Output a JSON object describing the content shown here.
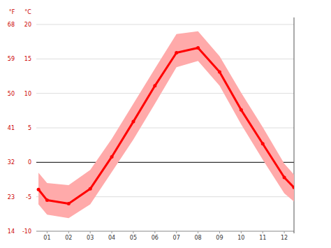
{
  "chart_data": {
    "type": "line",
    "y_label": "°C",
    "y2_label": "°F",
    "x": [
      0.6,
      1,
      2,
      3,
      4,
      5,
      6,
      7,
      8,
      9,
      10,
      11,
      12,
      12.45
    ],
    "xlim": [
      0.5,
      12.45
    ],
    "xticks": [
      {
        "value": 1,
        "label": "01"
      },
      {
        "value": 2,
        "label": "02"
      },
      {
        "value": 3,
        "label": "03"
      },
      {
        "value": 4,
        "label": "04"
      },
      {
        "value": 5,
        "label": "05"
      },
      {
        "value": 6,
        "label": "06"
      },
      {
        "value": 7,
        "label": "07"
      },
      {
        "value": 8,
        "label": "08"
      },
      {
        "value": 9,
        "label": "09"
      },
      {
        "value": 10,
        "label": "10"
      },
      {
        "value": 11,
        "label": "11"
      },
      {
        "value": 12,
        "label": "12"
      }
    ],
    "ylim": [
      -10,
      20
    ],
    "yticks": [
      -10,
      -5,
      0,
      5,
      10,
      15,
      20
    ],
    "y2lim": [
      14,
      68
    ],
    "y2ticks": [
      14,
      23,
      32,
      41,
      50,
      59,
      68
    ],
    "grid": true,
    "series": [
      {
        "type": "band",
        "color": "#ffaaaa",
        "upper": [
          -1.5,
          -3.0,
          -3.3,
          -1.1,
          3.4,
          8.5,
          13.6,
          18.6,
          19.0,
          15.4,
          10.1,
          5.1,
          -0.2,
          -1.8
        ],
        "lower": [
          -6.1,
          -7.6,
          -8.1,
          -6.1,
          -1.4,
          3.3,
          8.5,
          13.8,
          14.7,
          11.1,
          5.5,
          0.4,
          -4.5,
          -5.7
        ]
      },
      {
        "type": "line",
        "color": "#ff0000",
        "marker": "circle",
        "values": [
          -3.95,
          -5.5,
          -6.0,
          -3.85,
          0.8,
          5.9,
          11.1,
          15.9,
          16.6,
          13.1,
          7.6,
          2.7,
          -2.2,
          -3.65
        ]
      }
    ]
  }
}
